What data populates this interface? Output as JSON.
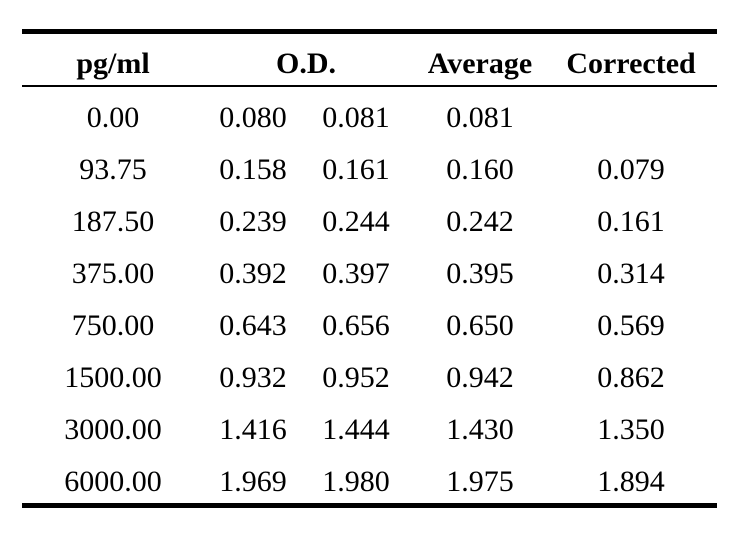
{
  "table": {
    "headers": {
      "pg": "pg/ml",
      "od": "O.D.",
      "average": "Average",
      "corrected": "Corrected"
    },
    "rows": [
      {
        "pg": "0.00",
        "od1": "0.080",
        "od2": "0.081",
        "average": "0.081",
        "corrected": ""
      },
      {
        "pg": "93.75",
        "od1": "0.158",
        "od2": "0.161",
        "average": "0.160",
        "corrected": "0.079"
      },
      {
        "pg": "187.50",
        "od1": "0.239",
        "od2": "0.244",
        "average": "0.242",
        "corrected": "0.161"
      },
      {
        "pg": "375.00",
        "od1": "0.392",
        "od2": "0.397",
        "average": "0.395",
        "corrected": "0.314"
      },
      {
        "pg": "750.00",
        "od1": "0.643",
        "od2": "0.656",
        "average": "0.650",
        "corrected": "0.569"
      },
      {
        "pg": "1500.00",
        "od1": "0.932",
        "od2": "0.952",
        "average": "0.942",
        "corrected": "0.862"
      },
      {
        "pg": "3000.00",
        "od1": "1.416",
        "od2": "1.444",
        "average": "1.430",
        "corrected": "1.350"
      },
      {
        "pg": "6000.00",
        "od1": "1.969",
        "od2": "1.980",
        "average": "1.975",
        "corrected": "1.894"
      }
    ]
  }
}
